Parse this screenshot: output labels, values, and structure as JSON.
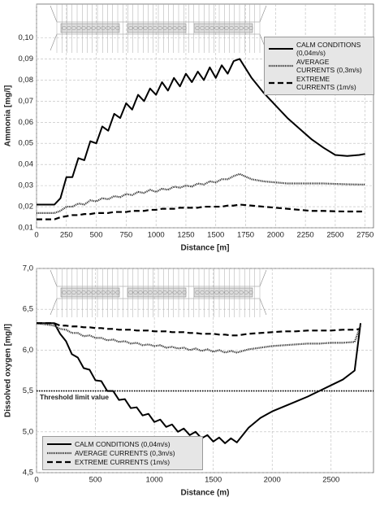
{
  "chart_data": [
    {
      "type": "line",
      "xlabel": "Distance [m]",
      "ylabel": "Ammonia [mg/l]",
      "x": [
        0,
        150,
        200,
        250,
        300,
        350,
        400,
        450,
        500,
        550,
        600,
        650,
        700,
        750,
        800,
        850,
        900,
        950,
        1000,
        1050,
        1100,
        1150,
        1200,
        1250,
        1300,
        1350,
        1400,
        1450,
        1500,
        1550,
        1600,
        1650,
        1700,
        1800,
        1900,
        2000,
        2100,
        2200,
        2300,
        2400,
        2500,
        2600,
        2700,
        2750
      ],
      "xlim": [
        0,
        2820
      ],
      "xticks": [
        0,
        250,
        500,
        750,
        1000,
        1250,
        1500,
        1750,
        2000,
        2250,
        2500,
        2750
      ],
      "ylim": [
        0.01,
        0.116
      ],
      "yticks": [
        {
          "value": 0.01,
          "label": "0,01"
        },
        {
          "value": 0.02,
          "label": "0,02"
        },
        {
          "value": 0.03,
          "label": "0,03"
        },
        {
          "value": 0.04,
          "label": "0,04"
        },
        {
          "value": 0.05,
          "label": "0,05"
        },
        {
          "value": 0.06,
          "label": "0,06"
        },
        {
          "value": 0.07,
          "label": "0,07"
        },
        {
          "value": 0.08,
          "label": "0,08"
        },
        {
          "value": 0.09,
          "label": "0,09"
        },
        {
          "value": 0.1,
          "label": "0,10"
        }
      ],
      "grid": true,
      "legend": "upper right",
      "series": [
        {
          "name": "CALM CONDITIONS (0,04m/s)",
          "color": "#000000",
          "style": "solid",
          "values": [
            0.021,
            0.021,
            0.024,
            0.034,
            0.034,
            0.043,
            0.042,
            0.051,
            0.05,
            0.058,
            0.056,
            0.064,
            0.062,
            0.069,
            0.066,
            0.073,
            0.07,
            0.076,
            0.073,
            0.079,
            0.075,
            0.081,
            0.077,
            0.083,
            0.079,
            0.084,
            0.08,
            0.086,
            0.081,
            0.087,
            0.083,
            0.089,
            0.09,
            0.081,
            0.074,
            0.068,
            0.062,
            0.057,
            0.052,
            0.048,
            0.0445,
            0.044,
            0.0445,
            0.045
          ]
        },
        {
          "name": "AVERAGE CURRENTS (0,3m/s)",
          "color": "#333333",
          "style": "dotted",
          "values": [
            0.017,
            0.017,
            0.018,
            0.02,
            0.02,
            0.0215,
            0.021,
            0.023,
            0.0225,
            0.024,
            0.0235,
            0.025,
            0.0245,
            0.026,
            0.0255,
            0.027,
            0.0265,
            0.028,
            0.027,
            0.0285,
            0.028,
            0.0295,
            0.029,
            0.03,
            0.0295,
            0.031,
            0.0305,
            0.032,
            0.0315,
            0.033,
            0.033,
            0.0345,
            0.0355,
            0.033,
            0.032,
            0.0315,
            0.031,
            0.031,
            0.031,
            0.031,
            0.0308,
            0.0306,
            0.0305,
            0.0305
          ]
        },
        {
          "name": "EXTREME CURRENTS (1m/s)",
          "color": "#000000",
          "style": "dashed",
          "values": [
            0.014,
            0.014,
            0.015,
            0.0155,
            0.016,
            0.016,
            0.0165,
            0.0165,
            0.017,
            0.017,
            0.017,
            0.0175,
            0.0175,
            0.0175,
            0.018,
            0.018,
            0.018,
            0.0185,
            0.0185,
            0.019,
            0.019,
            0.019,
            0.0195,
            0.0195,
            0.0195,
            0.0195,
            0.02,
            0.02,
            0.02,
            0.02,
            0.0205,
            0.0205,
            0.021,
            0.0205,
            0.02,
            0.0195,
            0.019,
            0.0185,
            0.018,
            0.018,
            0.0178,
            0.0177,
            0.0177,
            0.0177
          ]
        }
      ]
    },
    {
      "type": "line",
      "xlabel": "Distance (m)",
      "ylabel": "Dissolved oxygen [mg/l]",
      "x": [
        0,
        150,
        200,
        250,
        300,
        350,
        400,
        450,
        500,
        550,
        600,
        650,
        700,
        750,
        800,
        850,
        900,
        950,
        1000,
        1050,
        1100,
        1150,
        1200,
        1250,
        1300,
        1350,
        1400,
        1450,
        1500,
        1550,
        1600,
        1650,
        1700,
        1800,
        1900,
        2000,
        2100,
        2200,
        2300,
        2400,
        2500,
        2600,
        2700,
        2750
      ],
      "xlim": [
        0,
        2860
      ],
      "xticks": [
        0,
        500,
        1000,
        1500,
        2000,
        2500
      ],
      "ylim": [
        4.5,
        7.0
      ],
      "yticks": [
        {
          "value": 4.5,
          "label": "4,5"
        },
        {
          "value": 5,
          "label": "5,0"
        },
        {
          "value": 5.5,
          "label": "5,5"
        },
        {
          "value": 6,
          "label": "6,0"
        },
        {
          "value": 6.5,
          "label": "6,5"
        },
        {
          "value": 7,
          "label": "7,0"
        }
      ],
      "grid": true,
      "legend": "lower left",
      "threshold": {
        "value": 5.5,
        "label": "Threshold limit value"
      },
      "series": [
        {
          "name": "CALM CONDITIONS (0,04m/s)",
          "color": "#000000",
          "style": "solid",
          "values": [
            6.33,
            6.33,
            6.2,
            6.11,
            5.95,
            5.91,
            5.78,
            5.76,
            5.63,
            5.62,
            5.5,
            5.5,
            5.39,
            5.4,
            5.29,
            5.3,
            5.2,
            5.22,
            5.12,
            5.15,
            5.06,
            5.09,
            5.0,
            5.04,
            4.96,
            5.0,
            4.92,
            4.96,
            4.88,
            4.93,
            4.86,
            4.92,
            4.87,
            5.05,
            5.17,
            5.25,
            5.31,
            5.37,
            5.43,
            5.5,
            5.57,
            5.64,
            5.75,
            6.33
          ]
        },
        {
          "name": "AVERAGE CURRENTS (0,3m/s)",
          "color": "#333333",
          "style": "dotted",
          "values": [
            6.33,
            6.3,
            6.26,
            6.25,
            6.21,
            6.21,
            6.17,
            6.18,
            6.15,
            6.15,
            6.12,
            6.13,
            6.1,
            6.11,
            6.08,
            6.09,
            6.06,
            6.07,
            6.05,
            6.06,
            6.03,
            6.04,
            6.02,
            6.03,
            6.0,
            6.02,
            5.99,
            6.01,
            5.98,
            6.0,
            5.97,
            5.99,
            5.97,
            6.01,
            6.03,
            6.05,
            6.06,
            6.07,
            6.08,
            6.08,
            6.09,
            6.09,
            6.1,
            6.3
          ]
        },
        {
          "name": "EXTREME CURRENTS (1m/s)",
          "color": "#000000",
          "style": "dashed",
          "values": [
            6.33,
            6.33,
            6.3,
            6.3,
            6.29,
            6.29,
            6.28,
            6.28,
            6.27,
            6.27,
            6.26,
            6.26,
            6.25,
            6.25,
            6.25,
            6.24,
            6.24,
            6.24,
            6.23,
            6.23,
            6.23,
            6.22,
            6.22,
            6.22,
            6.21,
            6.21,
            6.2,
            6.2,
            6.2,
            6.19,
            6.19,
            6.18,
            6.18,
            6.2,
            6.21,
            6.22,
            6.23,
            6.23,
            6.24,
            6.24,
            6.24,
            6.25,
            6.25,
            6.26
          ]
        }
      ]
    }
  ]
}
